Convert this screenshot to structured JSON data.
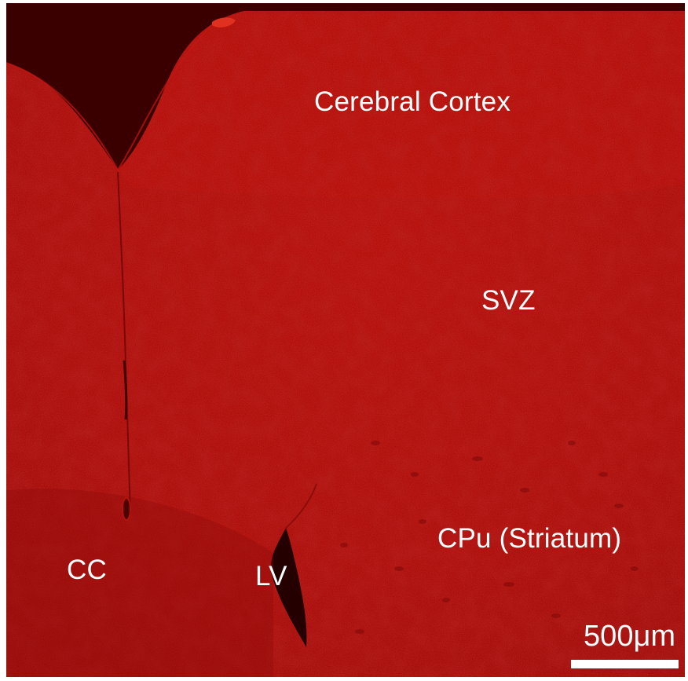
{
  "image": {
    "kind": "fluorescence micrograph of coronal brain section",
    "stain_color": "#b80f0a",
    "background_color": "#a10c0a",
    "dark_region_color": "#3a0000"
  },
  "labels": {
    "cerebral_cortex": "Cerebral Cortex",
    "svz": "SVZ",
    "cpu": "CPu (Striatum)",
    "cc": "CC",
    "lv": "LV"
  },
  "scale_bar": {
    "label": "500μm",
    "color": "#ffffff"
  }
}
